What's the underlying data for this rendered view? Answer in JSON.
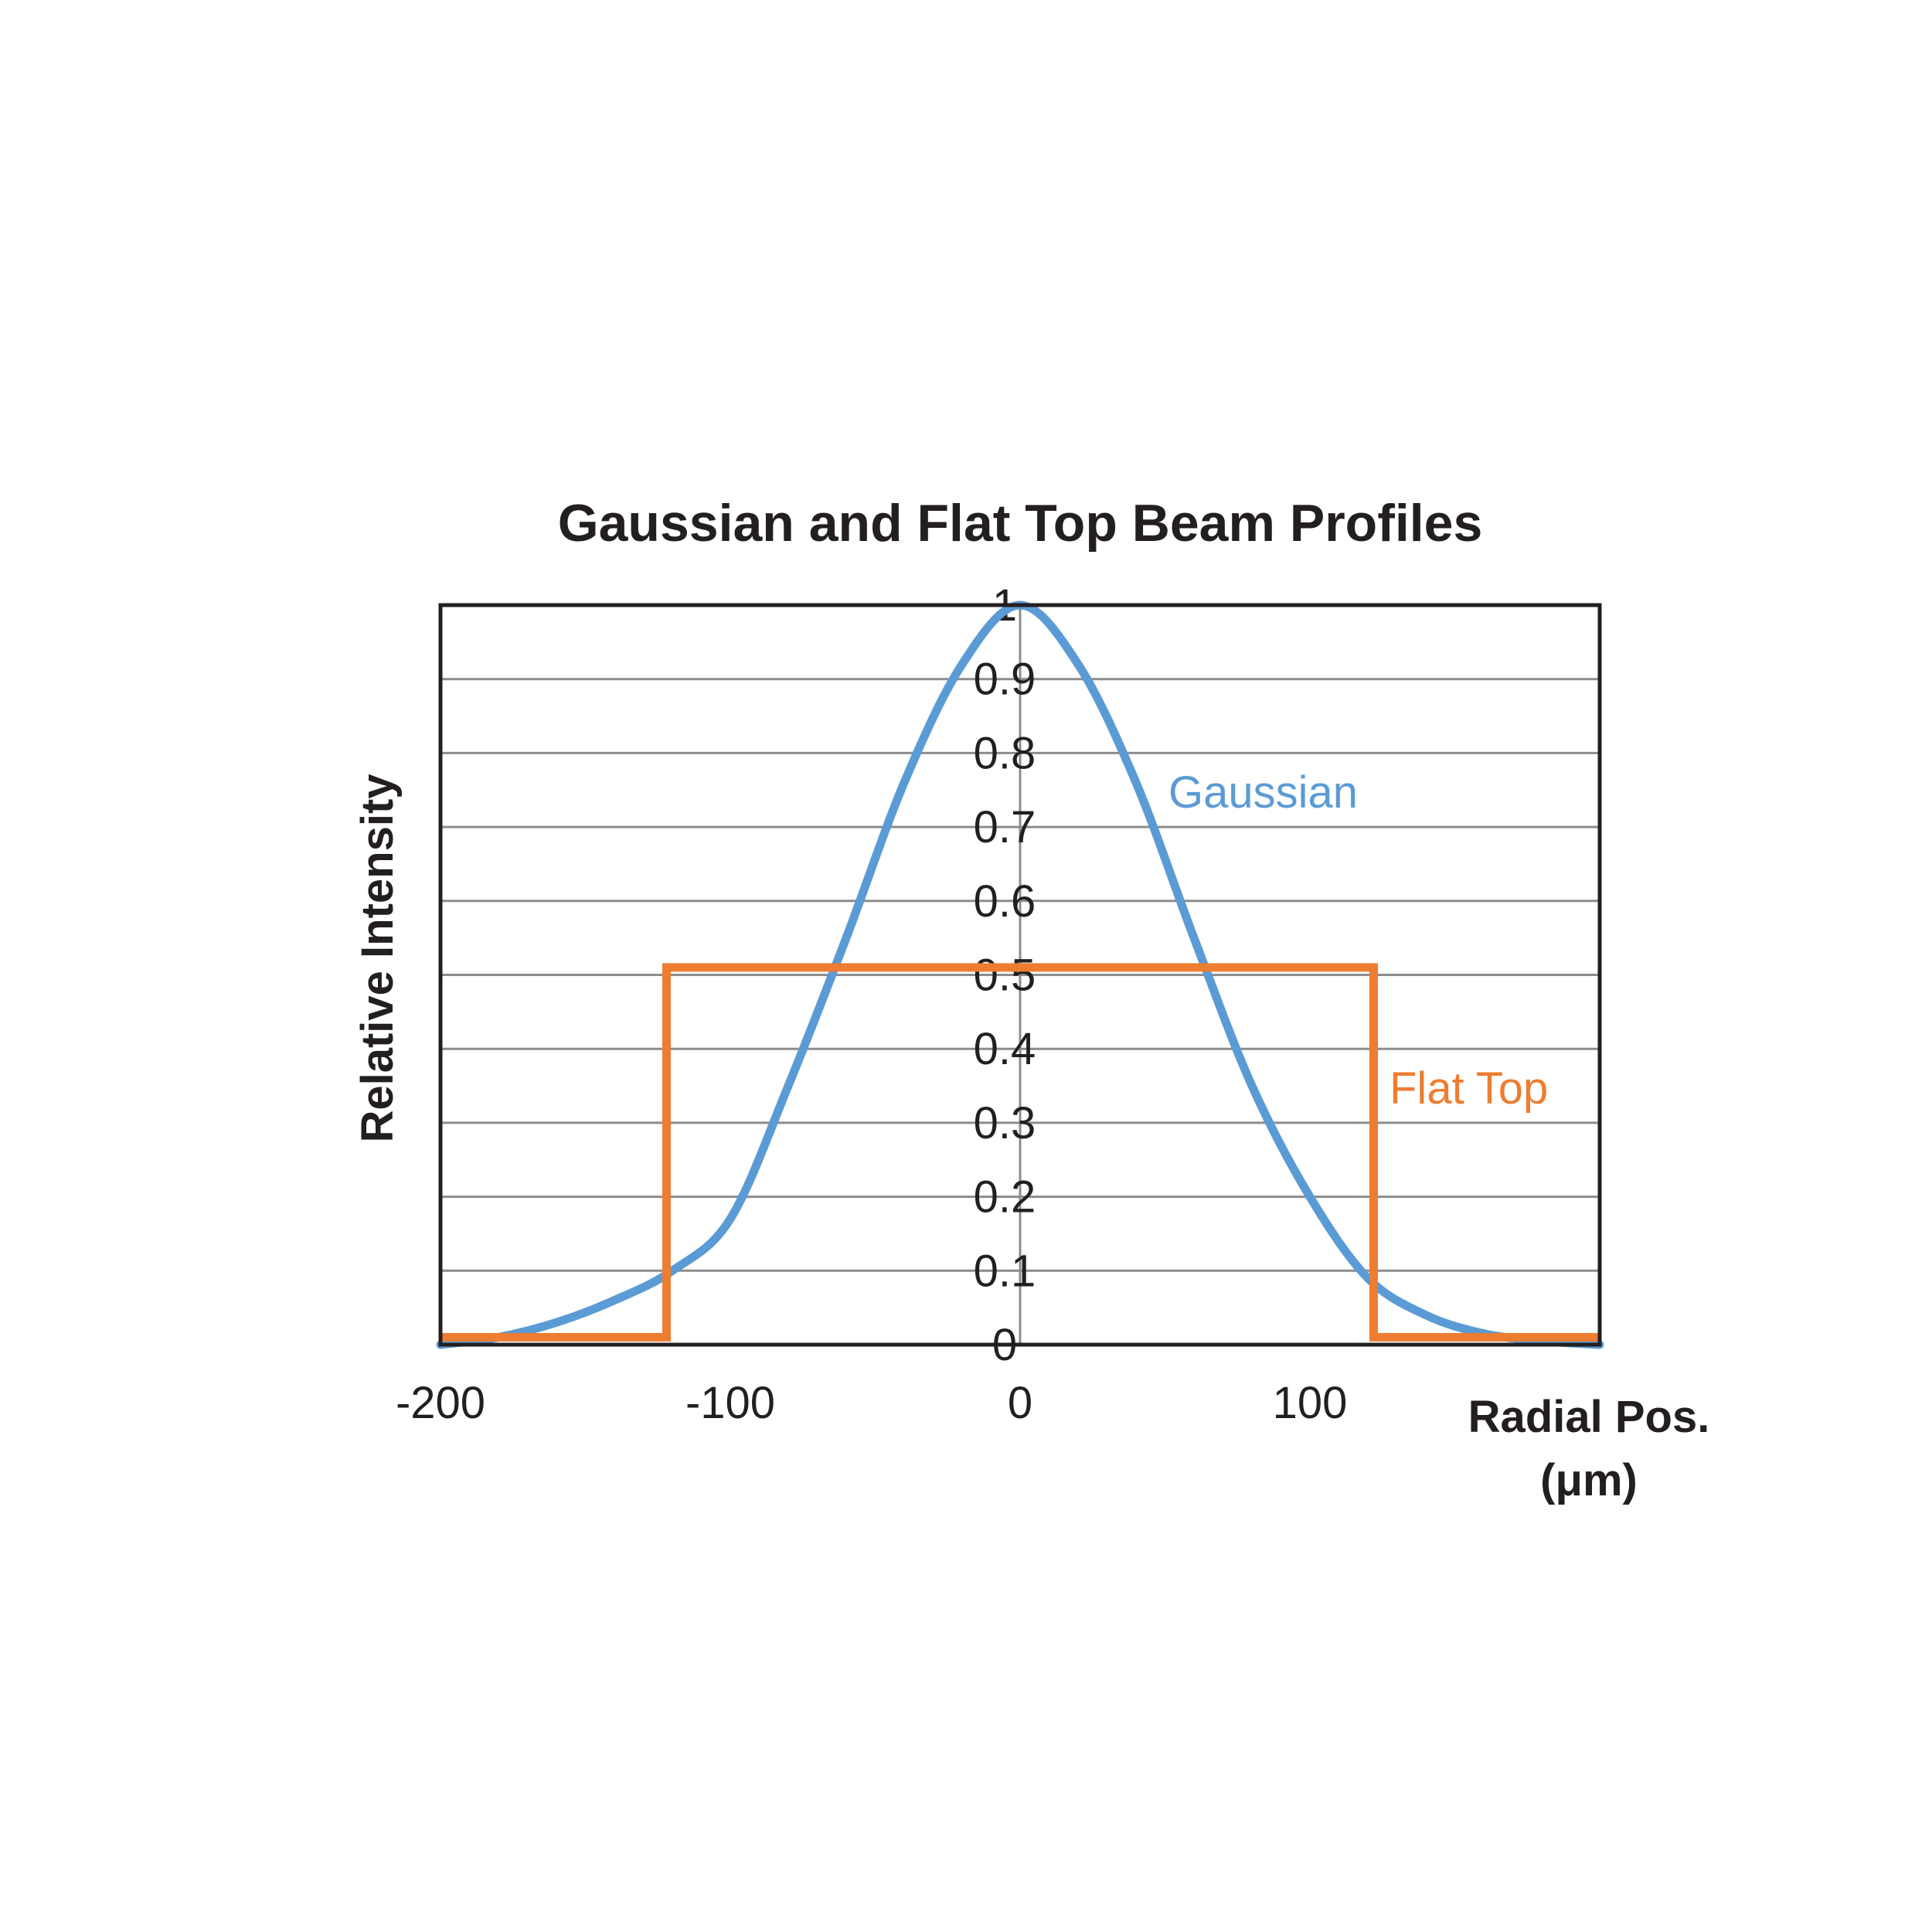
{
  "chart_data": {
    "type": "line",
    "title": "Gaussian and Flat Top Beam Profiles",
    "xlabel": [
      "Radial Pos.",
      "(μm)"
    ],
    "ylabel": "Relative Intensity",
    "xlim": [
      -200,
      200
    ],
    "ylim": [
      0,
      1
    ],
    "x_ticks": [
      "-200",
      "-100",
      "0",
      "100"
    ],
    "x_tick_values": [
      -200,
      -100,
      0,
      100
    ],
    "y_ticks": [
      "0",
      "0.1",
      "0.2",
      "0.3",
      "0.4",
      "0.5",
      "0.6",
      "0.7",
      "0.8",
      "0.9",
      "1"
    ],
    "y_tick_values": [
      0,
      0.1,
      0.2,
      0.3,
      0.4,
      0.5,
      0.6,
      0.7,
      0.8,
      0.9,
      1
    ],
    "grid": "horizontal",
    "legend": "inline labels",
    "series": [
      {
        "name": "Gaussian",
        "color": "#5b9bd5",
        "x": [
          -200,
          -180,
          -160,
          -140,
          -120,
          -100,
          -80,
          -60,
          -40,
          -20,
          0,
          20,
          40,
          60,
          80,
          100,
          120,
          140,
          160,
          180,
          200
        ],
        "y": [
          0.0,
          0.01,
          0.03,
          0.06,
          0.1,
          0.17,
          0.35,
          0.55,
          0.76,
          0.92,
          1.0,
          0.92,
          0.76,
          0.55,
          0.35,
          0.2,
          0.09,
          0.04,
          0.015,
          0.005,
          0.0
        ]
      },
      {
        "name": "Flat Top",
        "color": "#ed7d31",
        "x": [
          -200,
          -122,
          -122,
          122,
          122,
          200
        ],
        "y": [
          0.01,
          0.01,
          0.51,
          0.51,
          0.01,
          0.01
        ]
      }
    ]
  }
}
